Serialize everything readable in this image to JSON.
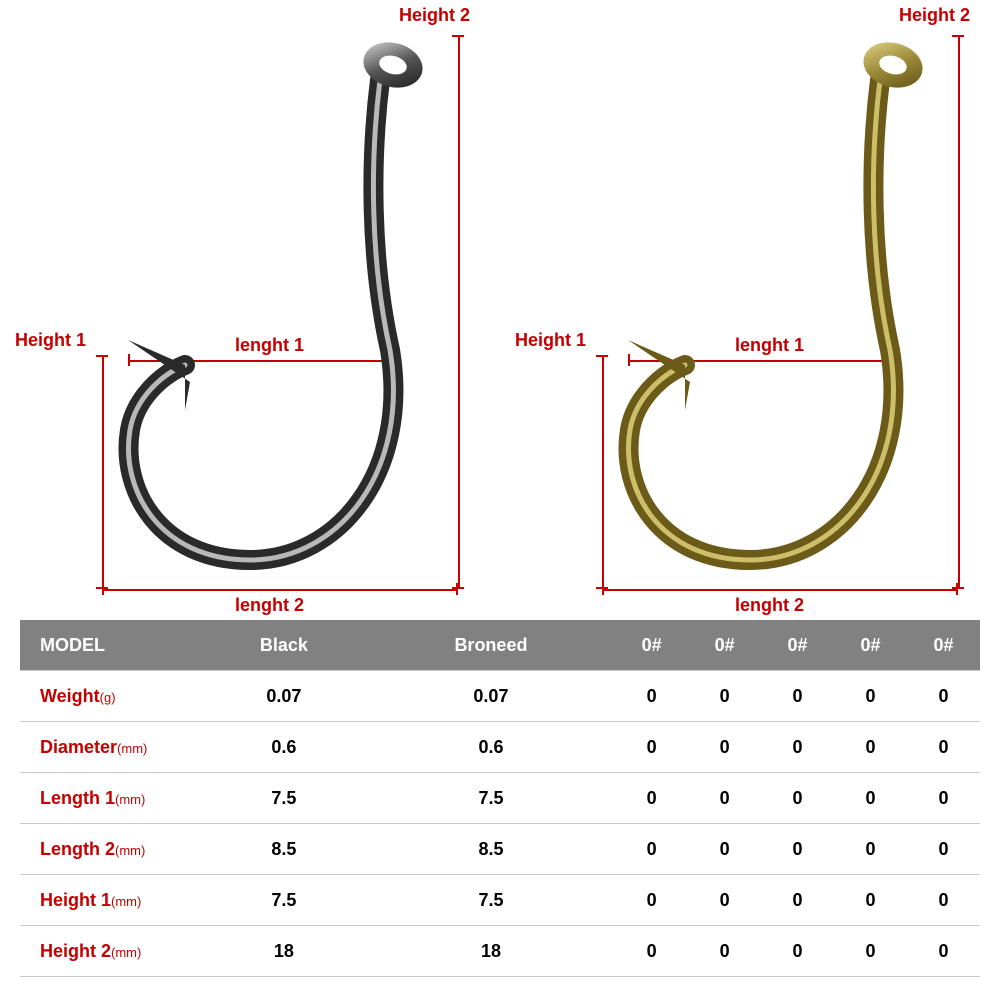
{
  "colors": {
    "dim_line": "#c40000",
    "dim_label": "#c40000",
    "table_header_bg": "#818181",
    "table_header_fg": "#ffffff",
    "row_border": "#c9c9c9",
    "row_label_color": "#c40000",
    "cell_color": "#000000",
    "hook_black_stroke": "#303030",
    "hook_black_shine": "#d0d0d0",
    "hook_bronze_stroke": "#6b5a18",
    "hook_bronze_shine": "#cdbf6a"
  },
  "labels": {
    "height1": "Height 1",
    "height2": "Height 2",
    "length1": "lenght 1",
    "length2": "lenght 2"
  },
  "table": {
    "header": [
      "MODEL",
      "Black",
      "Broneed",
      "0#",
      "0#",
      "0#",
      "0#",
      "0#"
    ],
    "rows": [
      {
        "label": "Weight",
        "unit": "(g)",
        "values": [
          "0.07",
          "0.07",
          "0",
          "0",
          "0",
          "0",
          "0"
        ]
      },
      {
        "label": "Diameter",
        "unit": "(mm)",
        "values": [
          "0.6",
          "0.6",
          "0",
          "0",
          "0",
          "0",
          "0"
        ]
      },
      {
        "label": "Length 1",
        "unit": "(mm)",
        "values": [
          "7.5",
          "7.5",
          "0",
          "0",
          "0",
          "0",
          "0"
        ]
      },
      {
        "label": "Length 2",
        "unit": "(mm)",
        "values": [
          "8.5",
          "8.5",
          "0",
          "0",
          "0",
          "0",
          "0"
        ]
      },
      {
        "label": "Height 1",
        "unit": "(mm)",
        "values": [
          "7.5",
          "7.5",
          "0",
          "0",
          "0",
          "0",
          "0"
        ]
      },
      {
        "label": "Height 2",
        "unit": "(mm)",
        "values": [
          "18",
          "18",
          "0",
          "0",
          "0",
          "0",
          "0"
        ]
      }
    ]
  }
}
